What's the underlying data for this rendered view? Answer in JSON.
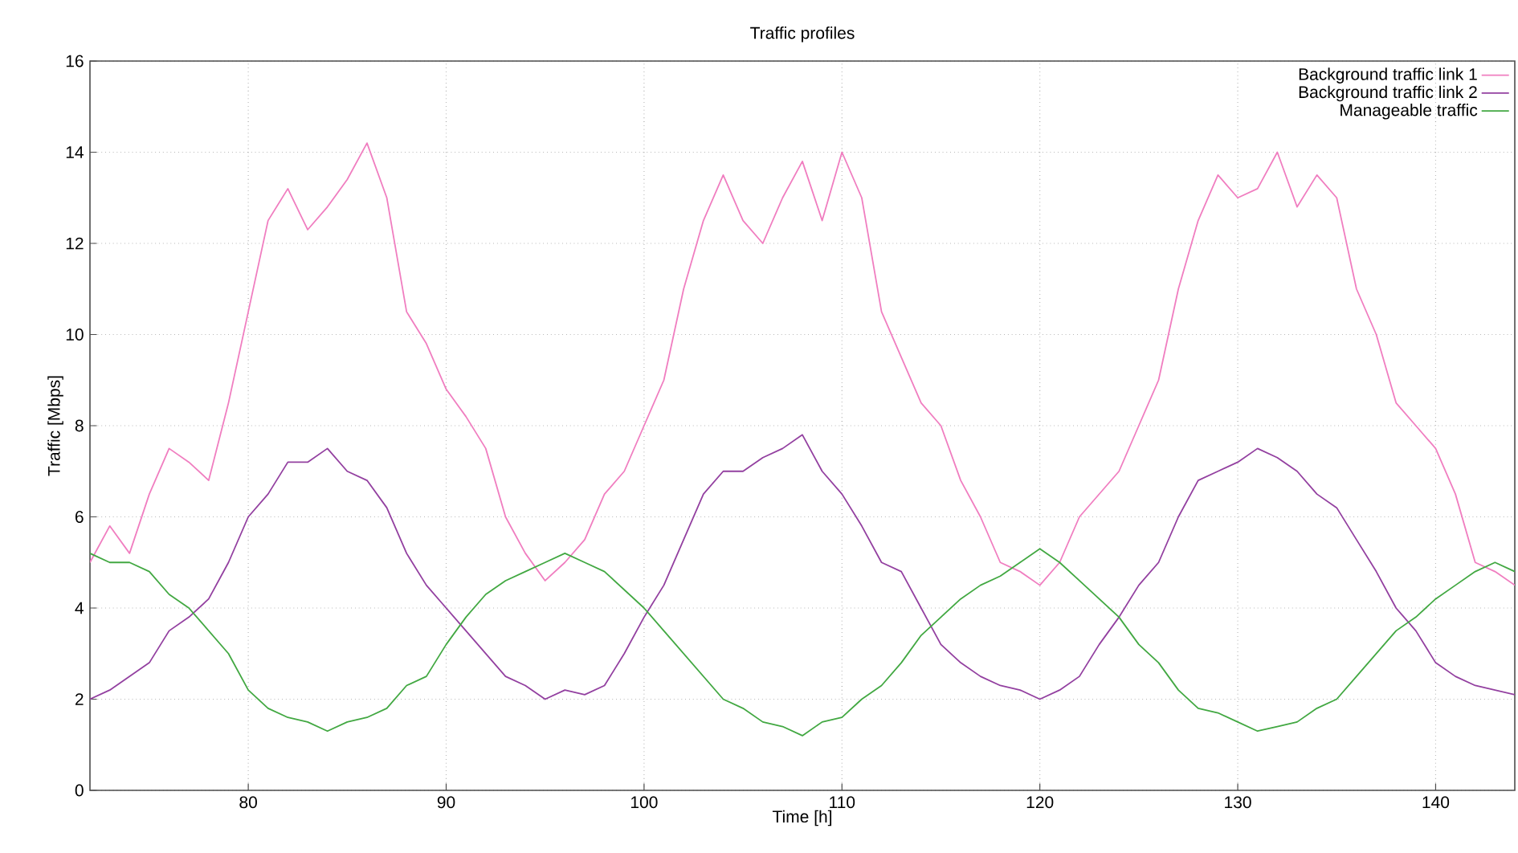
{
  "chart_data": {
    "type": "line",
    "title": "Traffic profiles",
    "xlabel": "Time [h]",
    "ylabel": "Traffic [Mbps]",
    "x": [
      72,
      73,
      74,
      75,
      76,
      77,
      78,
      79,
      80,
      81,
      82,
      83,
      84,
      85,
      86,
      87,
      88,
      89,
      90,
      91,
      92,
      93,
      94,
      95,
      96,
      97,
      98,
      99,
      100,
      101,
      102,
      103,
      104,
      105,
      106,
      107,
      108,
      109,
      110,
      111,
      112,
      113,
      114,
      115,
      116,
      117,
      118,
      119,
      120,
      121,
      122,
      123,
      124,
      125,
      126,
      127,
      128,
      129,
      130,
      131,
      132,
      133,
      134,
      135,
      136,
      137,
      138,
      139,
      140,
      141,
      142,
      143,
      144
    ],
    "series": [
      {
        "name": "Background traffic link 1",
        "color": "#f07ec0",
        "values": [
          5.0,
          5.8,
          5.2,
          6.5,
          7.5,
          7.2,
          6.8,
          8.5,
          10.5,
          12.5,
          13.2,
          12.3,
          12.8,
          13.4,
          14.2,
          13.0,
          10.5,
          9.8,
          8.8,
          8.2,
          7.5,
          6.0,
          5.2,
          4.6,
          5.0,
          5.5,
          6.5,
          7.0,
          8.0,
          9.0,
          11.0,
          12.5,
          13.5,
          12.5,
          12.0,
          13.0,
          13.8,
          12.5,
          14.0,
          13.0,
          10.5,
          9.5,
          8.5,
          8.0,
          6.8,
          6.0,
          5.0,
          4.8,
          4.5,
          5.0,
          6.0,
          6.5,
          7.0,
          8.0,
          9.0,
          11.0,
          12.5,
          13.5,
          13.0,
          13.2,
          14.0,
          12.8,
          13.5,
          13.0,
          11.0,
          10.0,
          8.5,
          8.0,
          7.5,
          6.5,
          5.0,
          4.8,
          4.5
        ]
      },
      {
        "name": "Background traffic link 2",
        "color": "#9340a0",
        "values": [
          2.0,
          2.2,
          2.5,
          2.8,
          3.5,
          3.8,
          4.2,
          5.0,
          6.0,
          6.5,
          7.2,
          7.2,
          7.5,
          7.0,
          6.8,
          6.2,
          5.2,
          4.5,
          4.0,
          3.5,
          3.0,
          2.5,
          2.3,
          2.0,
          2.2,
          2.1,
          2.3,
          3.0,
          3.8,
          4.5,
          5.5,
          6.5,
          7.0,
          7.0,
          7.3,
          7.5,
          7.8,
          7.0,
          6.5,
          5.8,
          5.0,
          4.8,
          4.0,
          3.2,
          2.8,
          2.5,
          2.3,
          2.2,
          2.0,
          2.2,
          2.5,
          3.2,
          3.8,
          4.5,
          5.0,
          6.0,
          6.8,
          7.0,
          7.2,
          7.5,
          7.3,
          7.0,
          6.5,
          6.2,
          5.5,
          4.8,
          4.0,
          3.5,
          2.8,
          2.5,
          2.3,
          2.2,
          2.1
        ]
      },
      {
        "name": "Manageable traffic",
        "color": "#42a842",
        "values": [
          5.2,
          5.0,
          5.0,
          4.8,
          4.3,
          4.0,
          3.5,
          3.0,
          2.2,
          1.8,
          1.6,
          1.5,
          1.3,
          1.5,
          1.6,
          1.8,
          2.3,
          2.5,
          3.2,
          3.8,
          4.3,
          4.6,
          4.8,
          5.0,
          5.2,
          5.0,
          4.8,
          4.4,
          4.0,
          3.5,
          3.0,
          2.5,
          2.0,
          1.8,
          1.5,
          1.4,
          1.2,
          1.5,
          1.6,
          2.0,
          2.3,
          2.8,
          3.4,
          3.8,
          4.2,
          4.5,
          4.7,
          5.0,
          5.3,
          5.0,
          4.6,
          4.2,
          3.8,
          3.2,
          2.8,
          2.2,
          1.8,
          1.7,
          1.5,
          1.3,
          1.4,
          1.5,
          1.8,
          2.0,
          2.5,
          3.0,
          3.5,
          3.8,
          4.2,
          4.5,
          4.8,
          5.0,
          4.8
        ]
      }
    ],
    "xlim": [
      72,
      144
    ],
    "ylim": [
      0,
      16
    ],
    "xticks": [
      80,
      90,
      100,
      110,
      120,
      130,
      140
    ],
    "yticks": [
      0,
      2,
      4,
      6,
      8,
      10,
      12,
      14,
      16
    ],
    "grid": true,
    "legend": "top right",
    "line_style": "solid"
  }
}
